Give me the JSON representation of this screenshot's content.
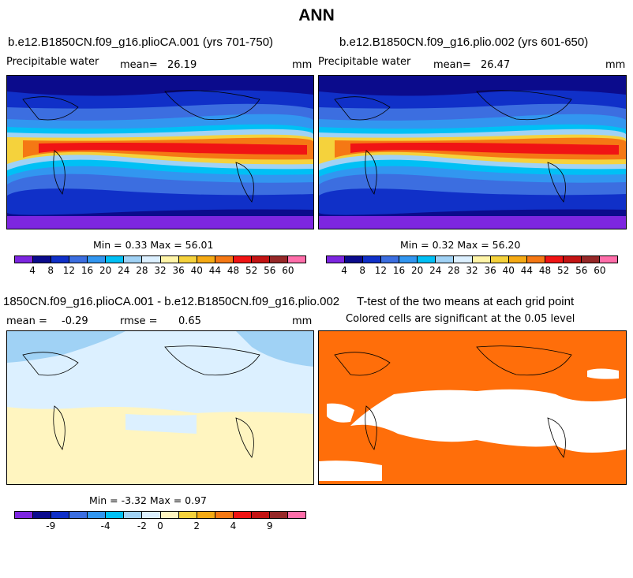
{
  "title": "ANN",
  "panels": [
    {
      "title": "b.e12.B1850CN.f09_g16.plioCA.001 (yrs 701-750)",
      "variable": "Precipitable water",
      "mean_label": "mean=",
      "mean_value": "26.19",
      "units": "mm",
      "stats": "Min =    0.33  Max =    56.01"
    },
    {
      "title": "b.e12.B1850CN.f09_g16.plio.002 (yrs 601-650)",
      "variable": "Precipitable water",
      "mean_label": "mean=",
      "mean_value": "26.47",
      "units": "mm",
      "stats": "Min =    0.32  Max =    56.20"
    },
    {
      "title": "1850CN.f09_g16.plioCA.001 - b.e12.B1850CN.f09_g16.plio.002",
      "mean_label": "mean =",
      "mean_value": "-0.29",
      "rmse_label": "rmse =",
      "rmse_value": "0.65",
      "units": "mm",
      "stats": "Min =   -3.32  Max =     0.97"
    },
    {
      "title": "T-test of the two means at each grid point",
      "subtitle": "Colored cells are significant at the 0.05 level"
    }
  ],
  "colorbar_abs": {
    "labels": [
      "4",
      "8",
      "12",
      "16",
      "20",
      "24",
      "28",
      "32",
      "36",
      "40",
      "44",
      "48",
      "52",
      "56",
      "60"
    ],
    "colors": [
      "#7d26e0",
      "#0b0b8c",
      "#1030c8",
      "#3c6ee0",
      "#3296f0",
      "#00c0f5",
      "#a0d2f5",
      "#dcf0ff",
      "#fff5a8",
      "#f5d23c",
      "#f5aa14",
      "#f57814",
      "#f01414",
      "#c31414",
      "#962828",
      "#ff6eaa"
    ]
  },
  "colorbar_diff": {
    "labels": [
      "-9",
      "-4",
      "-2",
      "0",
      "2",
      "4",
      "9"
    ],
    "colors": [
      "#7d26e0",
      "#0b0b8c",
      "#1030c8",
      "#3c6ee0",
      "#3296f0",
      "#00c0f5",
      "#a0d2f5",
      "#dcf0ff",
      "#fff5c0",
      "#f5d23c",
      "#f5aa14",
      "#f57814",
      "#f01414",
      "#c31414",
      "#962828",
      "#ff6eaa"
    ]
  },
  "chart_data": [
    {
      "type": "heatmap",
      "title": "b.e12.B1850CN.f09_g16.plioCA.001 (yrs 701-750)",
      "variable": "Precipitable water",
      "units": "mm",
      "mean": 26.19,
      "min": 0.33,
      "max": 56.01,
      "colorbar_levels": [
        4,
        8,
        12,
        16,
        20,
        24,
        28,
        32,
        36,
        40,
        44,
        48,
        52,
        56,
        60
      ]
    },
    {
      "type": "heatmap",
      "title": "b.e12.B1850CN.f09_g16.plio.002 (yrs 601-650)",
      "variable": "Precipitable water",
      "units": "mm",
      "mean": 26.47,
      "min": 0.32,
      "max": 56.2,
      "colorbar_levels": [
        4,
        8,
        12,
        16,
        20,
        24,
        28,
        32,
        36,
        40,
        44,
        48,
        52,
        56,
        60
      ]
    },
    {
      "type": "heatmap",
      "title": "1850CN.f09_g16.plioCA.001 - b.e12.B1850CN.f09_g16.plio.002",
      "units": "mm",
      "mean": -0.29,
      "rmse": 0.65,
      "min": -3.32,
      "max": 0.97,
      "colorbar_labels": [
        -9,
        -4,
        -2,
        0,
        2,
        4,
        9
      ]
    },
    {
      "type": "heatmap",
      "title": "T-test of the two means at each grid point",
      "subtitle": "Colored cells are significant at the 0.05 level",
      "significance_level": 0.05
    }
  ]
}
